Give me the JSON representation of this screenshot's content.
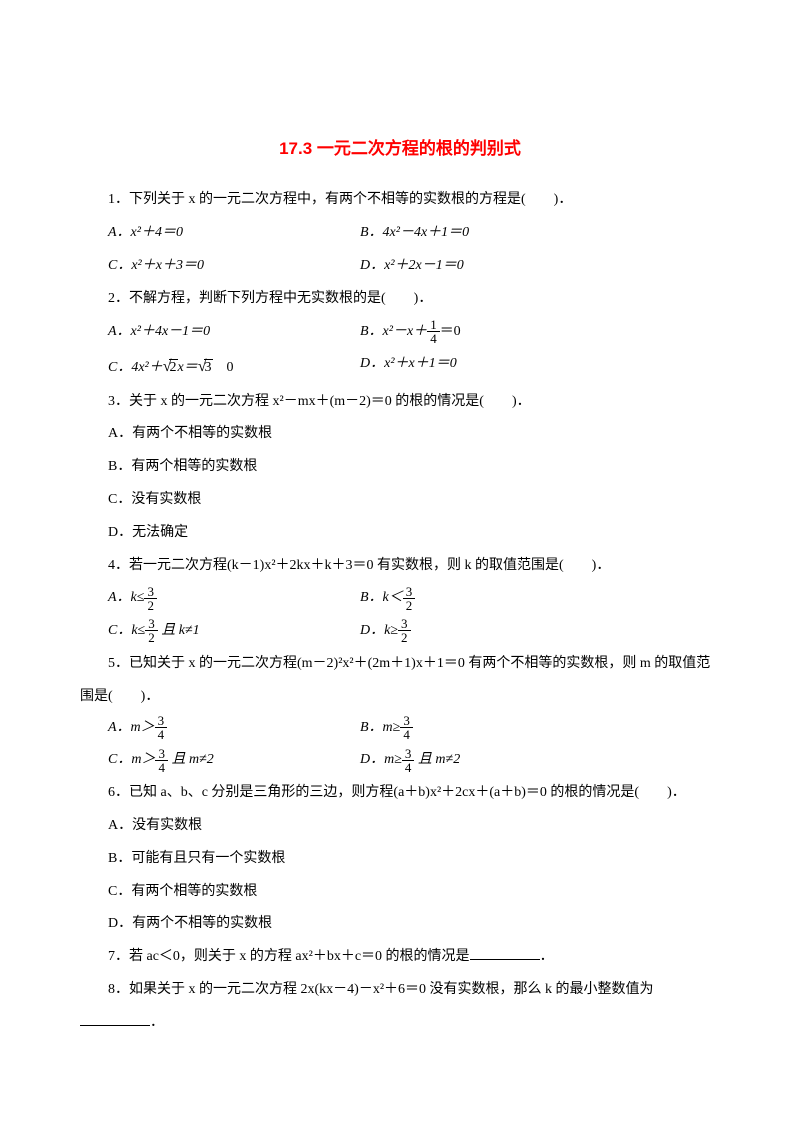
{
  "title": "17.3 一元二次方程的根的判别式",
  "q1": {
    "text": "1．下列关于 x 的一元二次方程中，有两个不相等的实数根的方程是(　　)．",
    "a": "A．x²＋4＝0",
    "b": "B．4x²－4x＋1＝0",
    "c": "C．x²＋x＋3＝0",
    "d": "D．x²＋2x－1＝0"
  },
  "q2": {
    "text": "2．不解方程，判断下列方程中无实数根的是(　　)．",
    "a": "A．x²＋4x－1＝0",
    "b_pre": "B．x²－x＋",
    "b_num": "1",
    "b_den": "4",
    "b_post": "＝0",
    "c_pre": "C．4x²＋",
    "c_sqrt": "2",
    "c_mid": "x＝",
    "c_sqrt2": "3",
    "c_post": "　0",
    "d": "D．x²＋x＋1＝0"
  },
  "q3": {
    "text": "3．关于 x 的一元二次方程 x²－mx＋(m－2)＝0 的根的情况是(　　)．",
    "a": "A．有两个不相等的实数根",
    "b": "B．有两个相等的实数根",
    "c": "C．没有实数根",
    "d": "D．无法确定"
  },
  "q4": {
    "text": "4．若一元二次方程(k－1)x²＋2kx＋k＋3＝0 有实数根，则 k 的取值范围是(　　)．",
    "a_pre": "A．k≤",
    "b_pre": "B．k＜",
    "c_pre": "C．k≤",
    "c_post": " 且 k≠1",
    "d_pre": "D．k≥",
    "frac_num": "3",
    "frac_den": "2"
  },
  "q5": {
    "text": "5．已知关于 x 的一元二次方程(m－2)²x²＋(2m＋1)x＋1＝0 有两个不相等的实数根，则 m 的取值范",
    "text2": "围是(　　)．",
    "a_pre": "A．m＞",
    "b_pre": "B．m≥",
    "c_pre": "C．m＞",
    "c_post": " 且 m≠2",
    "d_pre": "D．m≥",
    "d_post": " 且 m≠2",
    "frac_num": "3",
    "frac_den": "4"
  },
  "q6": {
    "text": "6．已知 a、b、c 分别是三角形的三边，则方程(a＋b)x²＋2cx＋(a＋b)＝0 的根的情况是(　　)．",
    "a": "A．没有实数根",
    "b": "B．可能有且只有一个实数根",
    "c": "C．有两个相等的实数根",
    "d": "D．有两个不相等的实数根"
  },
  "q7": {
    "text_pre": "7．若 ac＜0，则关于 x 的方程 ax²＋bx＋c＝0 的根的情况是",
    "text_post": "．"
  },
  "q8": {
    "text": "8．如果关于 x 的一元二次方程 2x(kx－4)－x²＋6＝0 没有实数根，那么 k 的最小整数值为",
    "text2": "．"
  }
}
